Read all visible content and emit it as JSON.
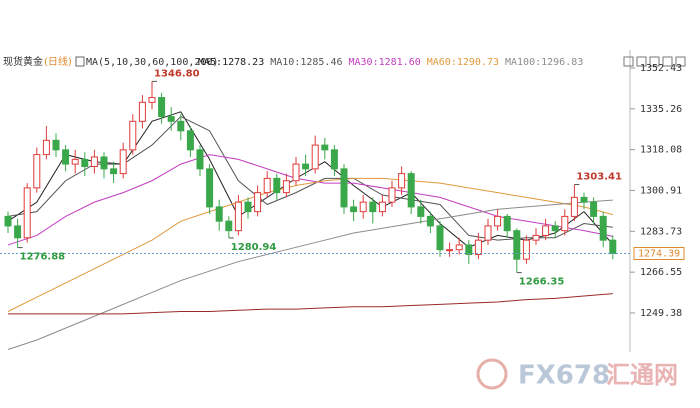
{
  "chart_data": {
    "type": "candlestick",
    "title": "现货黄金",
    "subtitle": "(日线)",
    "indicator": "MA(5,10,30,60,100,200)",
    "ylim": [
      1233.8,
      1360
    ],
    "yticks": [
      1352.43,
      1335.26,
      1318.08,
      1300.91,
      1283.73,
      1266.55,
      1249.38
    ],
    "up_color": "#e03a3a",
    "down_color": "#3aa84a",
    "open": [
      1290,
      1286,
      1281,
      1302,
      1316,
      1322,
      1318,
      1312,
      1314,
      1311,
      1315,
      1310,
      1308,
      1318,
      1330,
      1338,
      1340,
      1332,
      1330,
      1326,
      1318,
      1310,
      1294,
      1288,
      1284,
      1296,
      1292,
      1300,
      1306,
      1300,
      1305,
      1312,
      1310,
      1320,
      1318,
      1310,
      1294,
      1292,
      1296,
      1292,
      1296,
      1302,
      1308,
      1294,
      1290,
      1286,
      1276,
      1276,
      1278,
      1274,
      1280,
      1286,
      1290,
      1284,
      1272,
      1280,
      1282,
      1286,
      1284,
      1290,
      1298,
      1296,
      1290,
      1280
    ],
    "high": [
      1292,
      1289,
      1304,
      1319,
      1328,
      1325,
      1320,
      1318,
      1317,
      1318,
      1317,
      1313,
      1321,
      1333,
      1341,
      1346.8,
      1342,
      1336,
      1333,
      1328,
      1320,
      1312,
      1297,
      1290,
      1299,
      1298,
      1303,
      1309,
      1308,
      1308,
      1315,
      1316,
      1324,
      1323,
      1320,
      1312,
      1297,
      1299,
      1298,
      1299,
      1305,
      1311,
      1309,
      1297,
      1292,
      1288,
      1279,
      1281,
      1280,
      1283,
      1289,
      1293,
      1291,
      1285,
      1282,
      1285,
      1289,
      1288,
      1293,
      1303.41,
      1300,
      1298,
      1292,
      1282
    ],
    "low": [
      1283,
      1276.88,
      1279,
      1300,
      1314,
      1315,
      1309,
      1308,
      1307,
      1308,
      1306,
      1304,
      1306,
      1316,
      1327,
      1335,
      1329,
      1326,
      1322,
      1315,
      1307,
      1291,
      1284,
      1280.94,
      1282,
      1289,
      1290,
      1298,
      1297,
      1298,
      1303,
      1307,
      1308,
      1314,
      1307,
      1291,
      1288,
      1289,
      1287,
      1290,
      1294,
      1299,
      1291,
      1287,
      1283,
      1273,
      1273,
      1274,
      1270,
      1272,
      1278,
      1284,
      1281,
      1266.35,
      1270,
      1278,
      1280,
      1281,
      1282,
      1288,
      1293,
      1287,
      1277,
      1272
    ],
    "close": [
      1286,
      1281,
      1302,
      1316,
      1322,
      1318,
      1312,
      1314,
      1311,
      1315,
      1310,
      1308,
      1318,
      1330,
      1338,
      1340,
      1332,
      1330,
      1326,
      1318,
      1310,
      1294,
      1288,
      1284,
      1296,
      1292,
      1300,
      1306,
      1300,
      1305,
      1312,
      1310,
      1320,
      1318,
      1310,
      1294,
      1292,
      1296,
      1292,
      1296,
      1302,
      1308,
      1294,
      1290,
      1286,
      1276,
      1276,
      1278,
      1274,
      1280,
      1286,
      1290,
      1284,
      1272,
      1280,
      1282,
      1286,
      1284,
      1290,
      1298,
      1296,
      1290,
      1280,
      1274.39
    ],
    "ma_x": [
      0,
      3,
      6,
      9,
      12,
      15,
      18,
      21,
      24,
      27,
      30,
      33,
      36,
      39,
      42,
      45,
      48,
      51,
      54,
      57,
      60,
      63
    ],
    "series": [
      {
        "name": "MA5:1278.23",
        "color": "#222222",
        "values": [
          1288,
          1296,
          1316,
          1313,
          1312,
          1330,
          1334,
          1314,
          1290,
          1298,
          1306,
          1313,
          1303,
          1294,
          1300,
          1287,
          1277,
          1282,
          1280,
          1283,
          1292,
          1278.23
        ]
      },
      {
        "name": "MA10:1285.46",
        "color": "#555555",
        "values": [
          1290,
          1292,
          1305,
          1312,
          1312,
          1320,
          1332,
          1326,
          1305,
          1295,
          1300,
          1306,
          1306,
          1299,
          1297,
          1295,
          1282,
          1280,
          1281,
          1281,
          1287,
          1285.46
        ]
      },
      {
        "name": "MA30:1281.60",
        "color": "#c23cc2",
        "values": [
          1278,
          1282,
          1290,
          1296,
          1300,
          1305,
          1312,
          1316,
          1314,
          1310,
          1306,
          1304,
          1304,
          1302,
          1300,
          1298,
          1294,
          1290,
          1288,
          1286,
          1284,
          1281.6
        ]
      },
      {
        "name": "MA60:1290.73",
        "color": "#e09a3c",
        "values": [
          1250,
          1256,
          1262,
          1268,
          1274,
          1280,
          1288,
          1292,
          1296,
          1300,
          1303,
          1305,
          1306,
          1306,
          1305,
          1304,
          1302,
          1300,
          1298,
          1296,
          1294,
          1290.73
        ]
      },
      {
        "name": "MA100:1296.83",
        "color": "#8c8c8c",
        "values": [
          1234,
          1238,
          1243,
          1248,
          1253,
          1258,
          1263,
          1267,
          1271,
          1274,
          1277,
          1280,
          1283,
          1285,
          1287,
          1289,
          1291,
          1293,
          1294,
          1295,
          1296,
          1296.83
        ]
      },
      {
        "color": "#9a2a2a",
        "values": [
          1249,
          1249,
          1249,
          1249,
          1249,
          1249.5,
          1250,
          1250,
          1250.5,
          1251,
          1251,
          1251.5,
          1252,
          1252,
          1252.5,
          1253,
          1253.5,
          1254,
          1255,
          1255.5,
          1256.5,
          1257.5
        ]
      }
    ],
    "annotations": [
      {
        "x": 15,
        "value": 1346.8,
        "label": "1346.80",
        "color": "#c0392b"
      },
      {
        "x": 23,
        "value": 1280.94,
        "label": "1280.94",
        "color": "#2e9a40"
      },
      {
        "x": 1,
        "value": 1276.88,
        "label": "1276.88",
        "color": "#2e9a40"
      },
      {
        "x": 53,
        "value": 1266.35,
        "label": "1266.35",
        "color": "#2e9a40"
      },
      {
        "x": 59,
        "value": 1303.41,
        "label": "1303.41",
        "color": "#c0392b"
      }
    ],
    "last_price": 1274.39,
    "watermark": "FX678",
    "watermark_cn": "汇通网"
  }
}
